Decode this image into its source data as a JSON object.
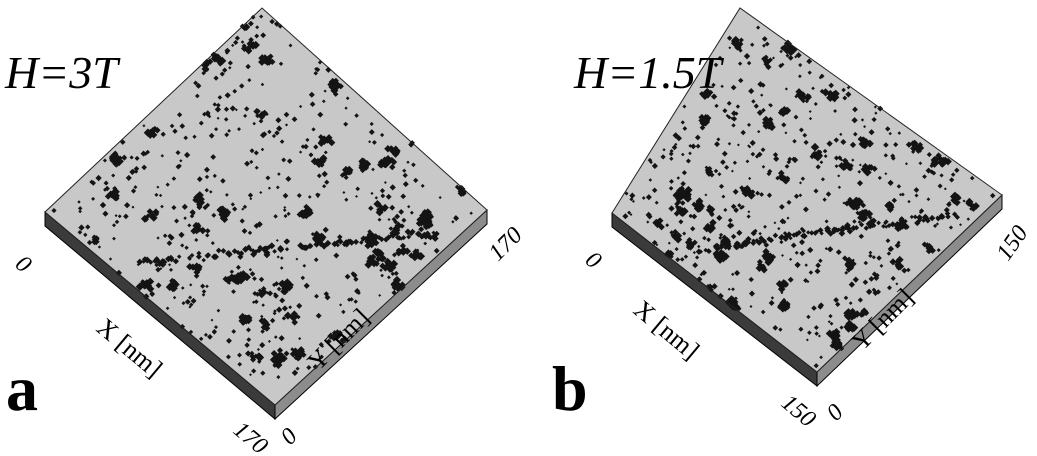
{
  "panels": [
    {
      "letter": "a",
      "field": "H=3T",
      "x_axis": {
        "label": "X [nm]",
        "min": 0,
        "max": 170
      },
      "y_axis": {
        "label": "Y [nm]",
        "min": 0,
        "max": 170
      }
    },
    {
      "letter": "b",
      "field": "H=1.5T",
      "x_axis": {
        "label": "X [nm]",
        "min": 0,
        "max": 150
      },
      "y_axis": {
        "label": "Y [nm]",
        "min": 0,
        "max": 150
      }
    }
  ]
}
